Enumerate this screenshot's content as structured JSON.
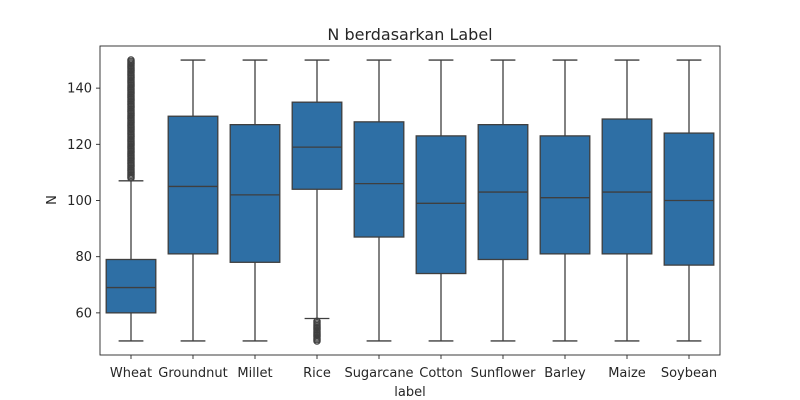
{
  "chart_data": {
    "type": "box",
    "title": "N berdasarkan Label",
    "xlabel": "label",
    "ylabel": "N",
    "ylim": [
      45,
      155
    ],
    "yticks": [
      60,
      80,
      100,
      120,
      140
    ],
    "box_color": "#2e6fa5",
    "line_color": "#3f3f3f",
    "categories": [
      "Wheat",
      "Groundnut",
      "Millet",
      "Rice",
      "Sugarcane",
      "Cotton",
      "Sunflower",
      "Barley",
      "Maize",
      "Soybean"
    ],
    "boxes": [
      {
        "label": "Wheat",
        "whislo": 50,
        "q1": 60,
        "med": 69,
        "q3": 79,
        "whishi": 107,
        "fliers_range": [
          108,
          150
        ]
      },
      {
        "label": "Groundnut",
        "whislo": 50,
        "q1": 81,
        "med": 105,
        "q3": 130,
        "whishi": 150
      },
      {
        "label": "Millet",
        "whislo": 50,
        "q1": 78,
        "med": 102,
        "q3": 127,
        "whishi": 150
      },
      {
        "label": "Rice",
        "whislo": 58,
        "q1": 104,
        "med": 119,
        "q3": 135,
        "whishi": 150,
        "fliers_range": [
          50,
          57
        ]
      },
      {
        "label": "Sugarcane",
        "whislo": 50,
        "q1": 87,
        "med": 106,
        "q3": 128,
        "whishi": 150
      },
      {
        "label": "Cotton",
        "whislo": 50,
        "q1": 74,
        "med": 99,
        "q3": 123,
        "whishi": 150
      },
      {
        "label": "Sunflower",
        "whislo": 50,
        "q1": 79,
        "med": 103,
        "q3": 127,
        "whishi": 150
      },
      {
        "label": "Barley",
        "whislo": 50,
        "q1": 81,
        "med": 101,
        "q3": 123,
        "whishi": 150
      },
      {
        "label": "Maize",
        "whislo": 50,
        "q1": 81,
        "med": 103,
        "q3": 129,
        "whishi": 150
      },
      {
        "label": "Soybean",
        "whislo": 50,
        "q1": 77,
        "med": 100,
        "q3": 124,
        "whishi": 150
      }
    ]
  }
}
